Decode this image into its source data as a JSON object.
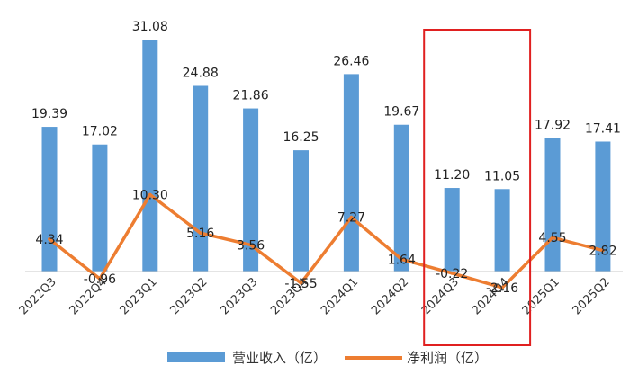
{
  "chart_data": {
    "type": "bar",
    "categories": [
      "2022Q3",
      "2022Q4",
      "2023Q1",
      "2023Q2",
      "2023Q3",
      "2023Q4",
      "2024Q1",
      "2024Q2",
      "2024Q3",
      "2024Q4",
      "2025Q1",
      "2025Q2"
    ],
    "series": [
      {
        "name": "营业收入（亿）",
        "type": "bar",
        "color": "#5b9bd5",
        "values": [
          19.39,
          17.02,
          31.08,
          24.88,
          21.86,
          16.25,
          26.46,
          19.67,
          11.2,
          11.05,
          17.92,
          17.41
        ],
        "labels": [
          "19.39",
          "17.02",
          "31.08",
          "24.88",
          "21.86",
          "16.25",
          "26.46",
          "19.67",
          "11.20",
          "11.05",
          "17.92",
          "17.41"
        ]
      },
      {
        "name": "净利润（亿）",
        "type": "line",
        "color": "#ed7d31",
        "values": [
          4.34,
          -0.96,
          10.3,
          5.16,
          3.56,
          -1.55,
          7.27,
          1.64,
          -0.22,
          -2.16,
          4.55,
          2.82
        ],
        "labels": [
          "4.34",
          "-0.96",
          "10.30",
          "5.16",
          "3.56",
          "-1.55",
          "7.27",
          "1.64",
          "-0.22",
          "-2.16",
          "4.55",
          "2.82"
        ]
      }
    ],
    "ylim": [
      -3,
      33
    ],
    "grid": false,
    "legend_position": "bottom",
    "highlight": {
      "categories": [
        "2024Q3",
        "2024Q4"
      ],
      "color": "#e02020"
    }
  }
}
